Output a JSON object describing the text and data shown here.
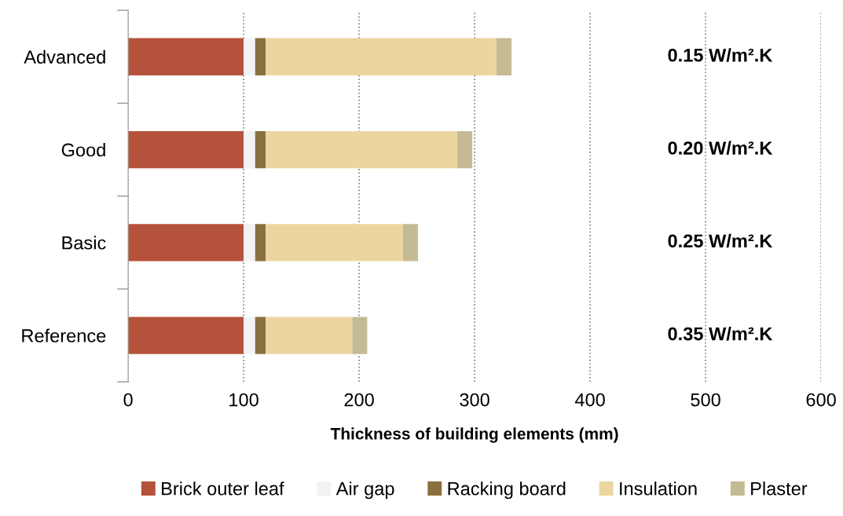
{
  "chart_data": {
    "type": "bar",
    "orientation": "horizontal",
    "stacked": true,
    "xlabel": "Thickness of building elements (mm)",
    "categories": [
      "Advanced",
      "Good",
      "Basic",
      "Reference"
    ],
    "series": [
      {
        "name": "Brick outer leaf",
        "color": "#b5523b",
        "values": [
          100,
          100,
          100,
          100
        ]
      },
      {
        "name": "Air gap",
        "color": "#f2f2f2",
        "values": [
          10,
          10,
          10,
          10
        ]
      },
      {
        "name": "Racking board",
        "color": "#8a7040",
        "values": [
          9,
          9,
          9,
          9
        ]
      },
      {
        "name": "Insulation",
        "color": "#ecd6a0",
        "values": [
          200,
          166,
          119,
          75
        ]
      },
      {
        "name": "Plaster",
        "color": "#c4bb95",
        "values": [
          13,
          13,
          13,
          13
        ]
      }
    ],
    "xlim": [
      0,
      600
    ],
    "xticks": [
      0,
      100,
      200,
      300,
      400,
      500,
      600
    ],
    "grid": "x",
    "legend": "bottom",
    "annotations": [
      "0.15 W/m².K",
      "0.20 W/m².K",
      "0.25 W/m².K",
      "0.35 W/m².K"
    ]
  }
}
